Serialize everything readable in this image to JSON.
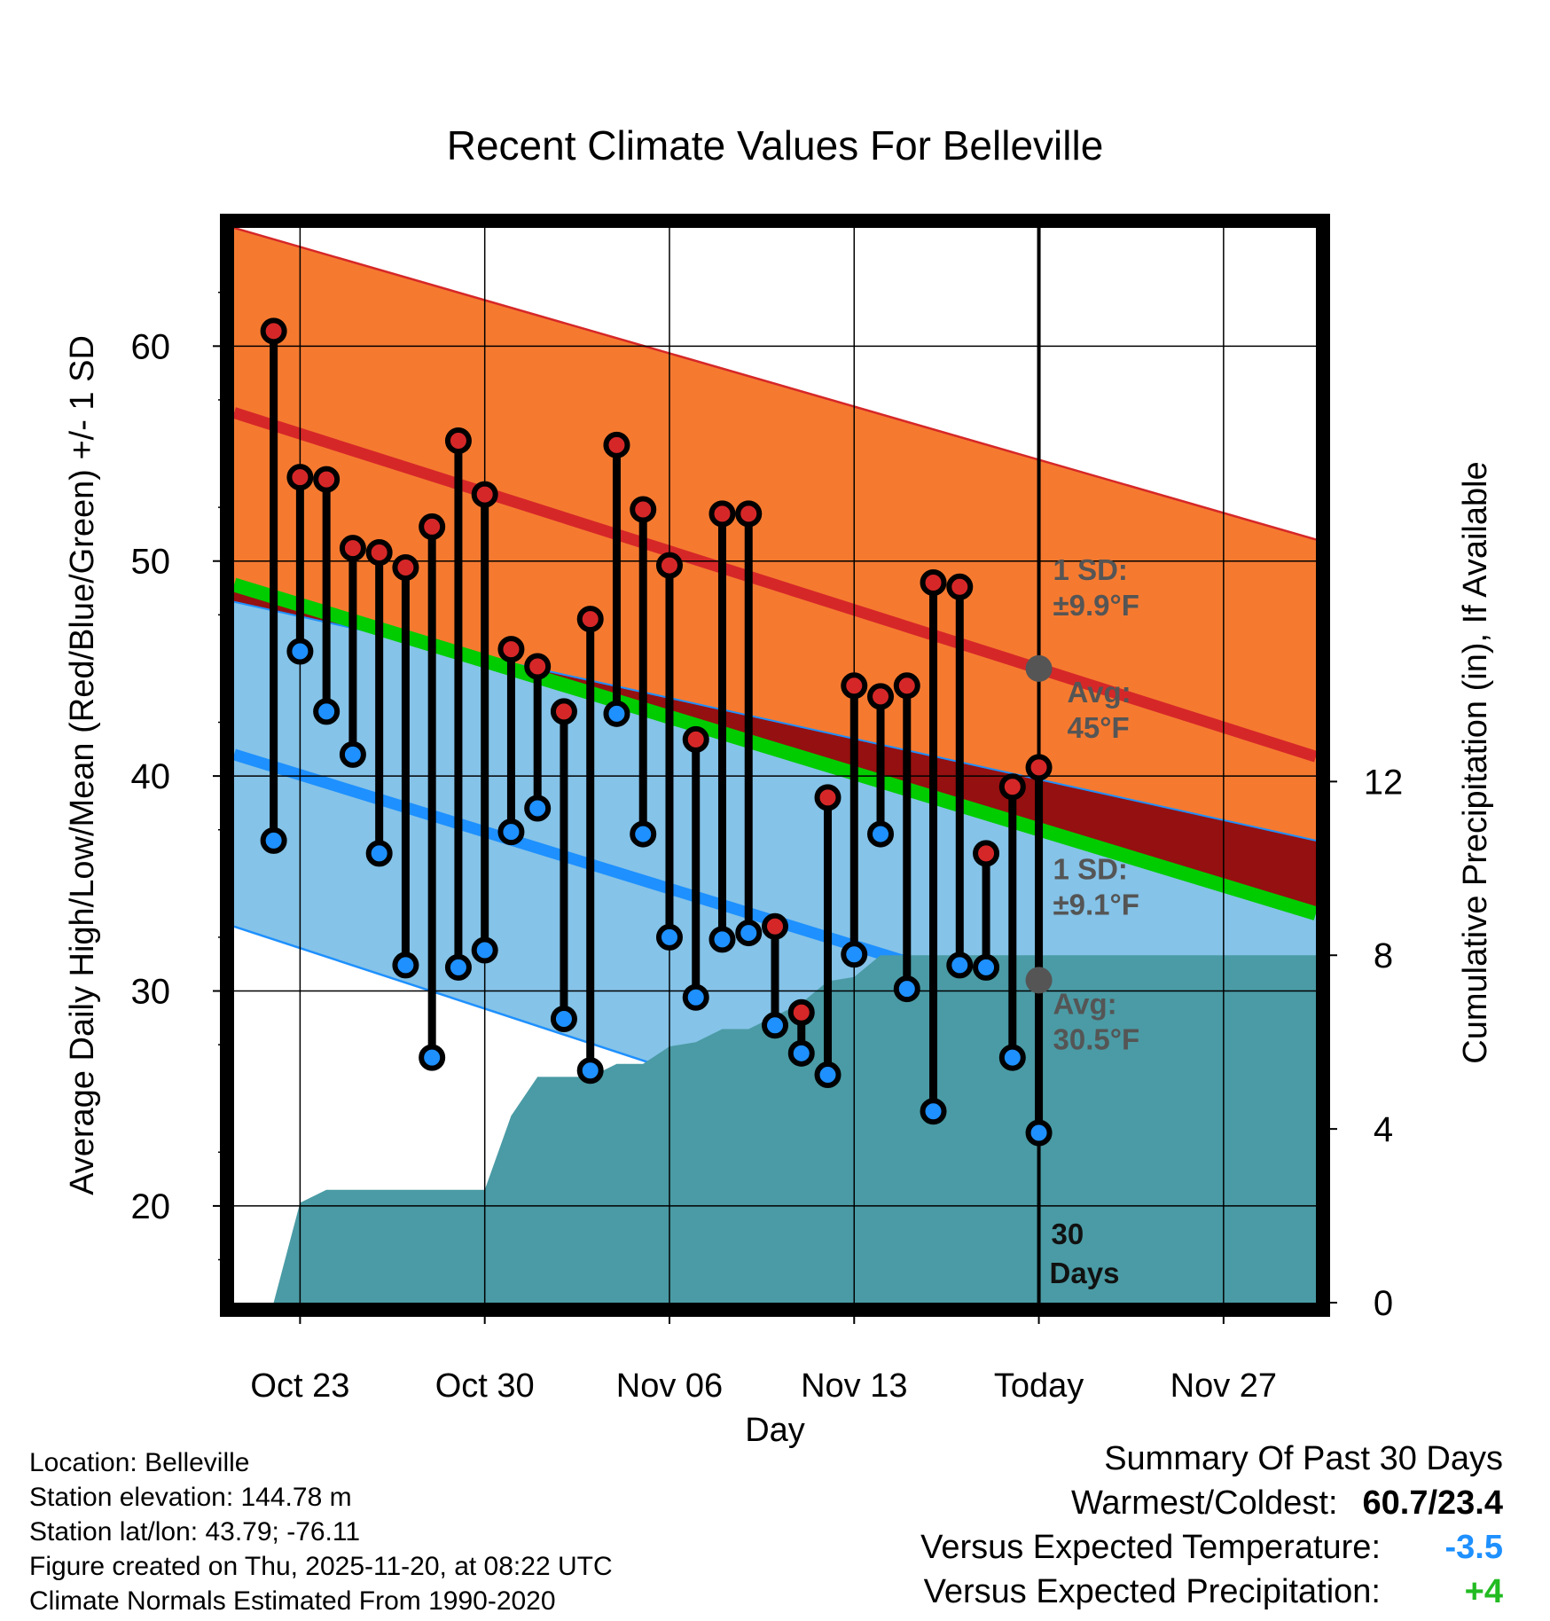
{
  "chart_data": {
    "type": "line",
    "title": "Recent Climate Values For Belleville",
    "xlabel": "Day",
    "ylabel": "Average Daily High/Low/Mean (Red/Blue/Green) +/- 1 SD",
    "y2label": "Cumulative Precipitation (in), If Available",
    "ylim": [
      15.5,
      65.5
    ],
    "y2lim": [
      0,
      24.75
    ],
    "xlim": [
      -0.5,
      40.5
    ],
    "y_ticks": [
      20,
      30,
      40,
      50,
      60
    ],
    "y2_ticks": [
      0,
      4,
      8,
      12
    ],
    "x_ticks": [
      {
        "day": 2,
        "label": "Oct 23"
      },
      {
        "day": 9,
        "label": "Oct 30"
      },
      {
        "day": 16,
        "label": "Nov 06"
      },
      {
        "day": 23,
        "label": "Nov 13"
      },
      {
        "day": 30,
        "label": "Today"
      },
      {
        "day": 37,
        "label": "Nov 27"
      }
    ],
    "today_day": 30,
    "today_label_line1": "30",
    "today_label_line2": "Days",
    "normals": {
      "high_avg": [
        56.9,
        40.9
      ],
      "high_sd_upper": [
        65.5,
        51.0
      ],
      "low_avg": [
        41.0,
        25.5
      ],
      "low_sd_lower": [
        33.0,
        16.5
      ],
      "low_sd_upper": [
        48.1,
        37.0
      ],
      "mean_avg": [
        48.9,
        33.6
      ]
    },
    "annotations": {
      "high_sd": "1 SD:",
      "high_sd_value": "±9.9°F",
      "high_avg": "Avg:",
      "high_avg_value": "45°F",
      "low_sd": "1 SD:",
      "low_sd_value": "±9.1°F",
      "low_avg": "Avg:",
      "low_avg_value": "30.5°F",
      "high_avg_today": 45,
      "low_avg_today": 30.5
    },
    "series": [
      {
        "name": "Daily High",
        "color": "#d62728",
        "values": [
          60.7,
          53.9,
          53.8,
          50.6,
          50.4,
          49.7,
          51.6,
          55.6,
          53.1,
          45.9,
          45.1,
          43.0,
          47.3,
          55.4,
          52.4,
          49.8,
          41.7,
          52.2,
          52.2,
          33.0,
          29.0,
          39.0,
          44.2,
          43.7,
          44.2,
          49.0,
          48.8,
          36.4,
          39.5,
          40.4
        ]
      },
      {
        "name": "Daily Low",
        "color": "#1e90ff",
        "values": [
          37.0,
          45.8,
          43.0,
          41.0,
          36.4,
          31.2,
          26.9,
          31.1,
          31.9,
          37.4,
          38.5,
          28.7,
          26.3,
          42.9,
          37.3,
          32.5,
          29.7,
          32.4,
          32.7,
          28.4,
          27.1,
          26.1,
          31.7,
          37.3,
          30.1,
          24.4,
          31.2,
          31.1,
          26.9,
          23.4
        ]
      },
      {
        "name": "Cumulative Precipitation",
        "x": [
          1,
          2,
          3,
          9,
          10,
          11,
          12,
          13,
          14,
          15,
          16,
          17,
          18,
          19,
          20,
          21,
          22,
          23,
          24,
          25,
          41
        ],
        "values": [
          0,
          2.3,
          2.6,
          2.6,
          4.3,
          5.2,
          5.2,
          5.2,
          5.5,
          5.5,
          5.9,
          6.0,
          6.3,
          6.3,
          6.6,
          6.9,
          7.4,
          7.5,
          8.0,
          8.0,
          8.0
        ]
      }
    ]
  },
  "info": {
    "location": "Location: Belleville",
    "elevation": "Station elevation: 144.78 m",
    "latlon": "Station lat/lon: 43.79; -76.11",
    "created": "Figure created on Thu, 2025-11-20, at 08:22 UTC",
    "normals": "Climate Normals Estimated From 1990-2020"
  },
  "summary": {
    "title": "Summary Of Past 30 Days",
    "warmest_label": "Warmest/Coldest:",
    "warmest_value": "60.7/23.4",
    "temp_label": "Versus Expected Temperature:",
    "temp_value": "-3.5",
    "precip_label": "Versus Expected Precipitation:",
    "precip_value": "+4"
  },
  "colors": {
    "high_band": "#f57a30",
    "high_line": "#d62728",
    "low_band": "#85c3e8",
    "low_line": "#1e90ff",
    "mean_line": "#00cc00",
    "dark_band": "#951010",
    "precip": "#4a9ba5",
    "annotation": "#555555",
    "temp_value": "#1e90ff",
    "precip_value": "#22bb22"
  }
}
